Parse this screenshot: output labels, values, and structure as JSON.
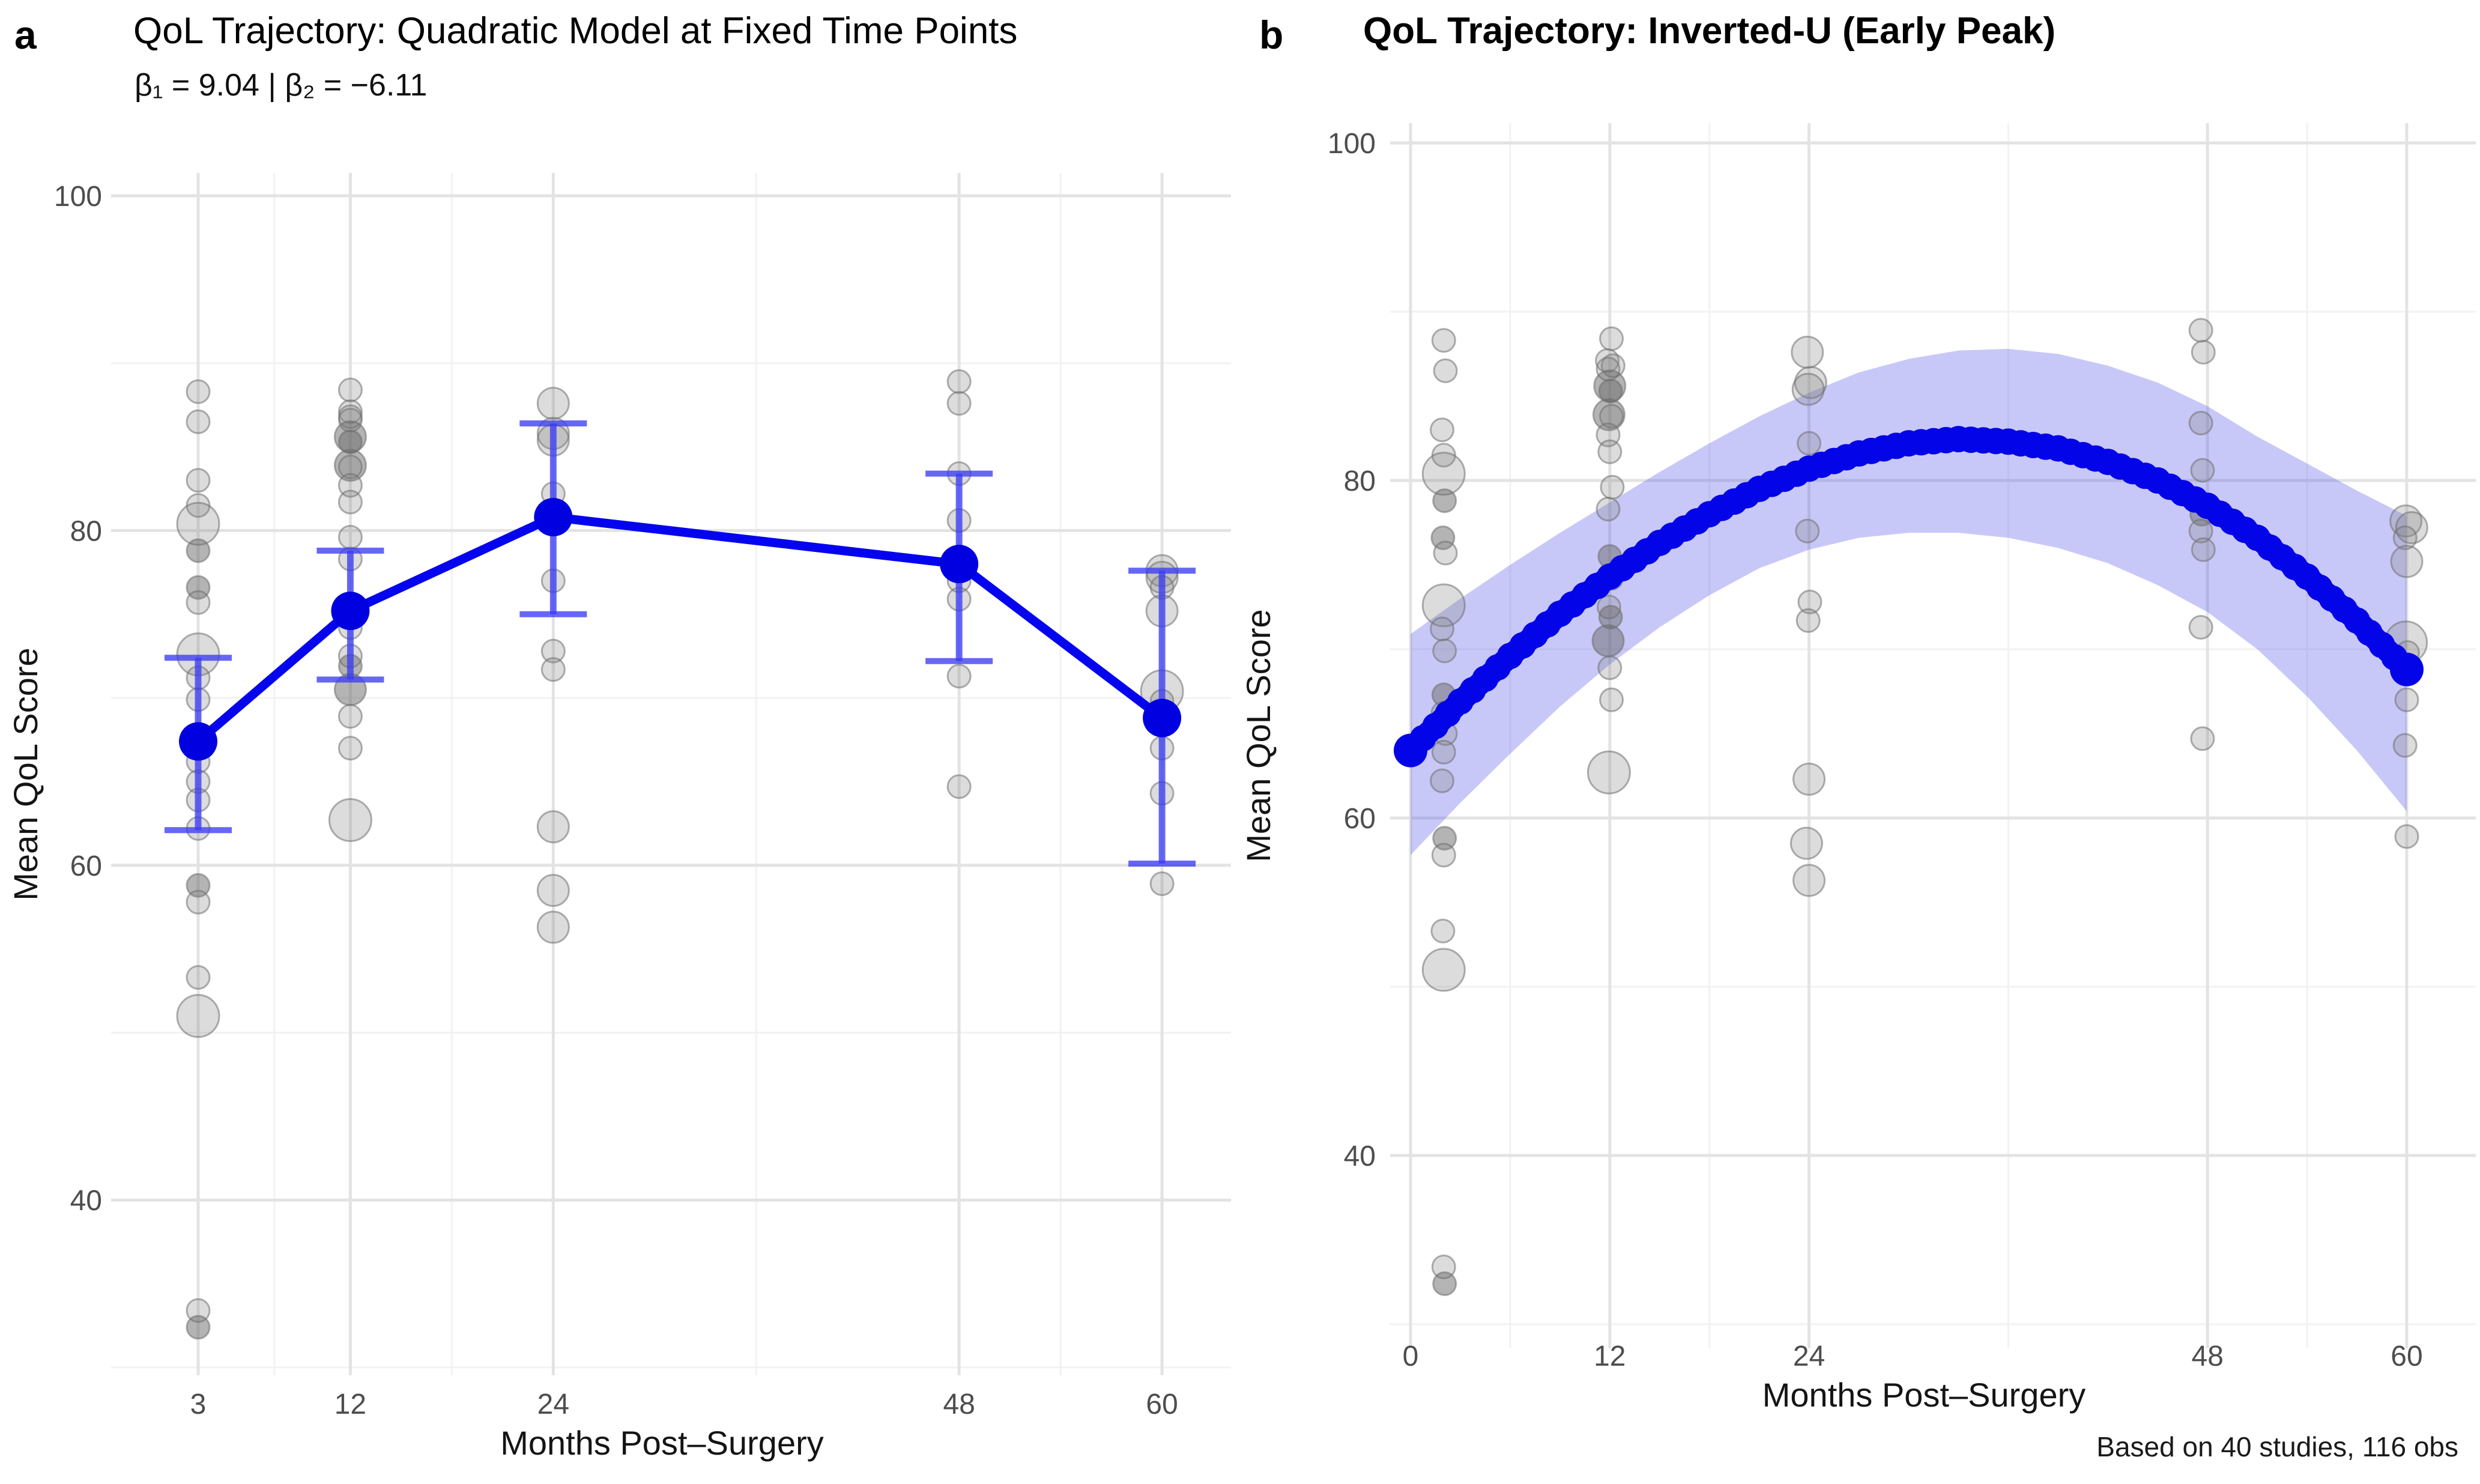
{
  "page": {
    "background": "#ffffff"
  },
  "colors": {
    "blue_line": "#0404ee",
    "mean_point": "#0000e0",
    "error_bar": "rgba(60,60,245,0.78)",
    "curve": "#0404e8",
    "ribbon": "rgba(88,88,235,0.33)",
    "grid_major": "#e3e3e3",
    "grid_minor": "#f2f2f2",
    "scatter_fill": "rgba(128,128,128,0.28)",
    "scatter_fill_dark": "rgba(105,105,105,0.50)",
    "scatter_stroke": "rgba(112,112,112,0.55)",
    "tick_text": "#4d4d4d",
    "axis_title_text": "#141414"
  },
  "chart_data": [
    {
      "id": "a",
      "tag": "a",
      "type": "line",
      "title": "QoL Trajectory: Quadratic Model at Fixed Time Points",
      "subtitle": "β₁ = 9.04 | β₂ = −6.11",
      "xlabel": "Months Post–Surgery",
      "ylabel": "Mean QoL Score",
      "x_ticks": [
        3,
        12,
        24,
        48,
        60
      ],
      "x_minor": [
        7.5,
        18,
        36,
        54
      ],
      "y_ticks": [
        100,
        80,
        60,
        40
      ],
      "y_minor": [
        90,
        70,
        50,
        30
      ],
      "x_range": [
        -2.2,
        63.5
      ],
      "y_range": [
        29.4,
        101.4
      ],
      "grid": true,
      "legend": "none",
      "means": {
        "months": [
          3,
          12,
          24,
          48,
          60
        ],
        "values": [
          67.4,
          75.2,
          80.8,
          78.0,
          68.8
        ],
        "ci_low": [
          62.1,
          71.1,
          75.0,
          72.2,
          60.1
        ],
        "ci_high": [
          72.4,
          78.8,
          86.4,
          83.4,
          77.6
        ]
      },
      "observations": [
        [
          3,
          88.3,
          1
        ],
        [
          3,
          86.5,
          1
        ],
        [
          3,
          83.0,
          1
        ],
        [
          3,
          81.5,
          1
        ],
        [
          3,
          80.4,
          3
        ],
        [
          3,
          78.8,
          1,
          1
        ],
        [
          3,
          76.6,
          1,
          1
        ],
        [
          3,
          75.7,
          1
        ],
        [
          3,
          72.6,
          3
        ],
        [
          3,
          71.2,
          1
        ],
        [
          3,
          69.9,
          1
        ],
        [
          3,
          67.3,
          1,
          1
        ],
        [
          3,
          66.2,
          1
        ],
        [
          3,
          65.0,
          1
        ],
        [
          3,
          63.9,
          1
        ],
        [
          3,
          62.2,
          1
        ],
        [
          3,
          58.8,
          1,
          1
        ],
        [
          3,
          57.8,
          1
        ],
        [
          3,
          53.3,
          1
        ],
        [
          3,
          51.0,
          3
        ],
        [
          3,
          33.4,
          1
        ],
        [
          3,
          32.4,
          1,
          1
        ],
        [
          12,
          88.4,
          1
        ],
        [
          12,
          87.1,
          1
        ],
        [
          12,
          86.8,
          1
        ],
        [
          12,
          86.6,
          1
        ],
        [
          12,
          85.6,
          2,
          1
        ],
        [
          12,
          85.3,
          1,
          1
        ],
        [
          12,
          83.9,
          2,
          1
        ],
        [
          12,
          83.8,
          1
        ],
        [
          12,
          82.7,
          1
        ],
        [
          12,
          81.7,
          1
        ],
        [
          12,
          79.6,
          1
        ],
        [
          12,
          78.3,
          1
        ],
        [
          12,
          75.5,
          1,
          1
        ],
        [
          12,
          74.2,
          1
        ],
        [
          12,
          72.5,
          1
        ],
        [
          12,
          71.9,
          1,
          1
        ],
        [
          12,
          70.5,
          2,
          1
        ],
        [
          12,
          68.9,
          1
        ],
        [
          12,
          67.0,
          1
        ],
        [
          12,
          62.7,
          3
        ],
        [
          24,
          87.6,
          2
        ],
        [
          24,
          85.8,
          2
        ],
        [
          24,
          85.4,
          2
        ],
        [
          24,
          82.2,
          1
        ],
        [
          24,
          77.0,
          1
        ],
        [
          24,
          72.8,
          1
        ],
        [
          24,
          71.7,
          1
        ],
        [
          24,
          62.3,
          2
        ],
        [
          24,
          58.5,
          2
        ],
        [
          24,
          56.3,
          2
        ],
        [
          48,
          88.9,
          1
        ],
        [
          48,
          87.6,
          1
        ],
        [
          48,
          83.4,
          1
        ],
        [
          48,
          80.6,
          1
        ],
        [
          48,
          78.0,
          1,
          1
        ],
        [
          48,
          77.0,
          1
        ],
        [
          48,
          75.9,
          1
        ],
        [
          48,
          71.3,
          1
        ],
        [
          48,
          64.7,
          1
        ],
        [
          60,
          77.6,
          2
        ],
        [
          60,
          77.2,
          2
        ],
        [
          60,
          76.6,
          1
        ],
        [
          60,
          75.2,
          2
        ],
        [
          60,
          70.4,
          3
        ],
        [
          60,
          69.8,
          1
        ],
        [
          60,
          67.0,
          1
        ],
        [
          60,
          64.3,
          1
        ],
        [
          60,
          58.9,
          1
        ]
      ]
    },
    {
      "id": "b",
      "tag": "b",
      "type": "line",
      "title": "QoL Trajectory: Inverted-U (Early Peak)",
      "caption": "Based on 40 studies, 116 obs",
      "xlabel": "Months Post–Surgery",
      "ylabel": "Mean QoL Score",
      "x_ticks": [
        0,
        12,
        24,
        48,
        60
      ],
      "x_minor": [
        6,
        18,
        36,
        54
      ],
      "y_ticks": [
        100,
        80,
        60,
        40
      ],
      "y_minor": [
        90,
        70,
        50,
        30
      ],
      "x_range": [
        -1.2,
        63.0
      ],
      "y_range": [
        28.0,
        102.3
      ],
      "grid": true,
      "legend": "none",
      "curve": {
        "months": [
          0,
          3,
          6,
          9,
          12,
          15,
          18,
          21,
          24,
          27,
          30,
          33,
          36,
          39,
          42,
          45,
          48,
          51,
          54,
          57,
          60
        ],
        "values": [
          64.0,
          66.9,
          69.6,
          72.1,
          74.3,
          76.3,
          78.0,
          79.5,
          80.7,
          81.6,
          82.2,
          82.45,
          82.3,
          81.9,
          81.1,
          80.0,
          78.5,
          76.6,
          74.3,
          71.7,
          68.8
        ]
      },
      "ribbon": {
        "months": [
          0,
          3,
          6,
          9,
          12,
          15,
          18,
          21,
          24,
          27,
          30,
          33,
          36,
          39,
          42,
          45,
          48,
          51,
          54,
          57,
          60
        ],
        "upper": [
          70.9,
          73.0,
          75.0,
          76.9,
          78.7,
          80.5,
          82.2,
          83.8,
          85.2,
          86.4,
          87.2,
          87.7,
          87.8,
          87.5,
          86.8,
          85.8,
          84.4,
          82.6,
          81.0,
          79.4,
          77.9
        ],
        "lower": [
          57.8,
          60.9,
          63.8,
          66.6,
          69.1,
          71.3,
          73.2,
          74.8,
          75.9,
          76.6,
          76.9,
          76.9,
          76.6,
          76.0,
          75.1,
          73.8,
          72.2,
          70.0,
          67.2,
          64.0,
          60.4
        ]
      },
      "observations": [
        [
          2.0,
          88.3,
          1
        ],
        [
          2.1,
          86.5,
          1
        ],
        [
          1.9,
          83.0,
          1
        ],
        [
          2.0,
          81.5,
          1
        ],
        [
          2.0,
          80.4,
          3
        ],
        [
          2.05,
          78.8,
          1,
          1
        ],
        [
          1.95,
          76.6,
          1,
          1
        ],
        [
          2.1,
          75.7,
          1
        ],
        [
          2.0,
          72.6,
          3
        ],
        [
          1.9,
          71.2,
          1
        ],
        [
          2.05,
          69.9,
          1
        ],
        [
          2.0,
          67.3,
          1,
          1
        ],
        [
          1.95,
          66.2,
          1
        ],
        [
          2.1,
          65.0,
          1
        ],
        [
          2.0,
          63.9,
          1
        ],
        [
          1.9,
          62.2,
          1
        ],
        [
          2.05,
          58.8,
          1,
          1
        ],
        [
          2.0,
          57.8,
          1
        ],
        [
          1.95,
          53.3,
          1
        ],
        [
          2.0,
          51.0,
          3
        ],
        [
          2.0,
          33.4,
          1
        ],
        [
          2.05,
          32.4,
          1,
          1
        ],
        [
          12.1,
          88.4,
          1
        ],
        [
          11.85,
          87.1,
          1
        ],
        [
          12.2,
          86.8,
          1
        ],
        [
          11.9,
          86.6,
          1
        ],
        [
          12.0,
          85.6,
          2,
          1
        ],
        [
          12.05,
          85.3,
          1,
          1
        ],
        [
          11.95,
          83.9,
          2,
          1
        ],
        [
          12.1,
          83.8,
          1
        ],
        [
          11.9,
          82.7,
          1
        ],
        [
          12.0,
          81.7,
          1
        ],
        [
          12.15,
          79.6,
          1
        ],
        [
          11.9,
          78.3,
          1
        ],
        [
          12.0,
          75.5,
          1,
          1
        ],
        [
          12.1,
          74.2,
          1
        ],
        [
          11.95,
          72.5,
          1
        ],
        [
          12.05,
          71.9,
          1,
          1
        ],
        [
          11.9,
          70.5,
          2,
          1
        ],
        [
          12.0,
          68.9,
          1
        ],
        [
          12.1,
          67.0,
          1
        ],
        [
          11.95,
          62.7,
          3
        ],
        [
          23.9,
          87.6,
          2
        ],
        [
          24.1,
          85.8,
          2
        ],
        [
          23.95,
          85.4,
          2
        ],
        [
          24.0,
          82.2,
          1
        ],
        [
          23.9,
          77.0,
          1
        ],
        [
          24.05,
          72.8,
          1
        ],
        [
          23.95,
          71.7,
          1
        ],
        [
          24.0,
          62.3,
          2
        ],
        [
          23.85,
          58.5,
          2
        ],
        [
          24.0,
          56.3,
          2
        ],
        [
          47.6,
          88.9,
          1
        ],
        [
          47.75,
          87.6,
          1
        ],
        [
          47.6,
          83.4,
          1
        ],
        [
          47.7,
          80.6,
          1
        ],
        [
          47.65,
          78.0,
          1,
          1
        ],
        [
          47.6,
          77.0,
          1
        ],
        [
          47.75,
          75.9,
          1
        ],
        [
          47.6,
          71.3,
          1
        ],
        [
          47.7,
          64.7,
          1
        ],
        [
          59.95,
          77.6,
          2
        ],
        [
          60.3,
          77.2,
          2
        ],
        [
          59.9,
          76.6,
          1
        ],
        [
          60.0,
          75.2,
          2
        ],
        [
          59.95,
          70.4,
          3
        ],
        [
          60.05,
          69.8,
          1
        ],
        [
          60.0,
          67.0,
          1
        ],
        [
          59.9,
          64.3,
          1
        ],
        [
          60.0,
          58.9,
          1
        ]
      ]
    }
  ]
}
